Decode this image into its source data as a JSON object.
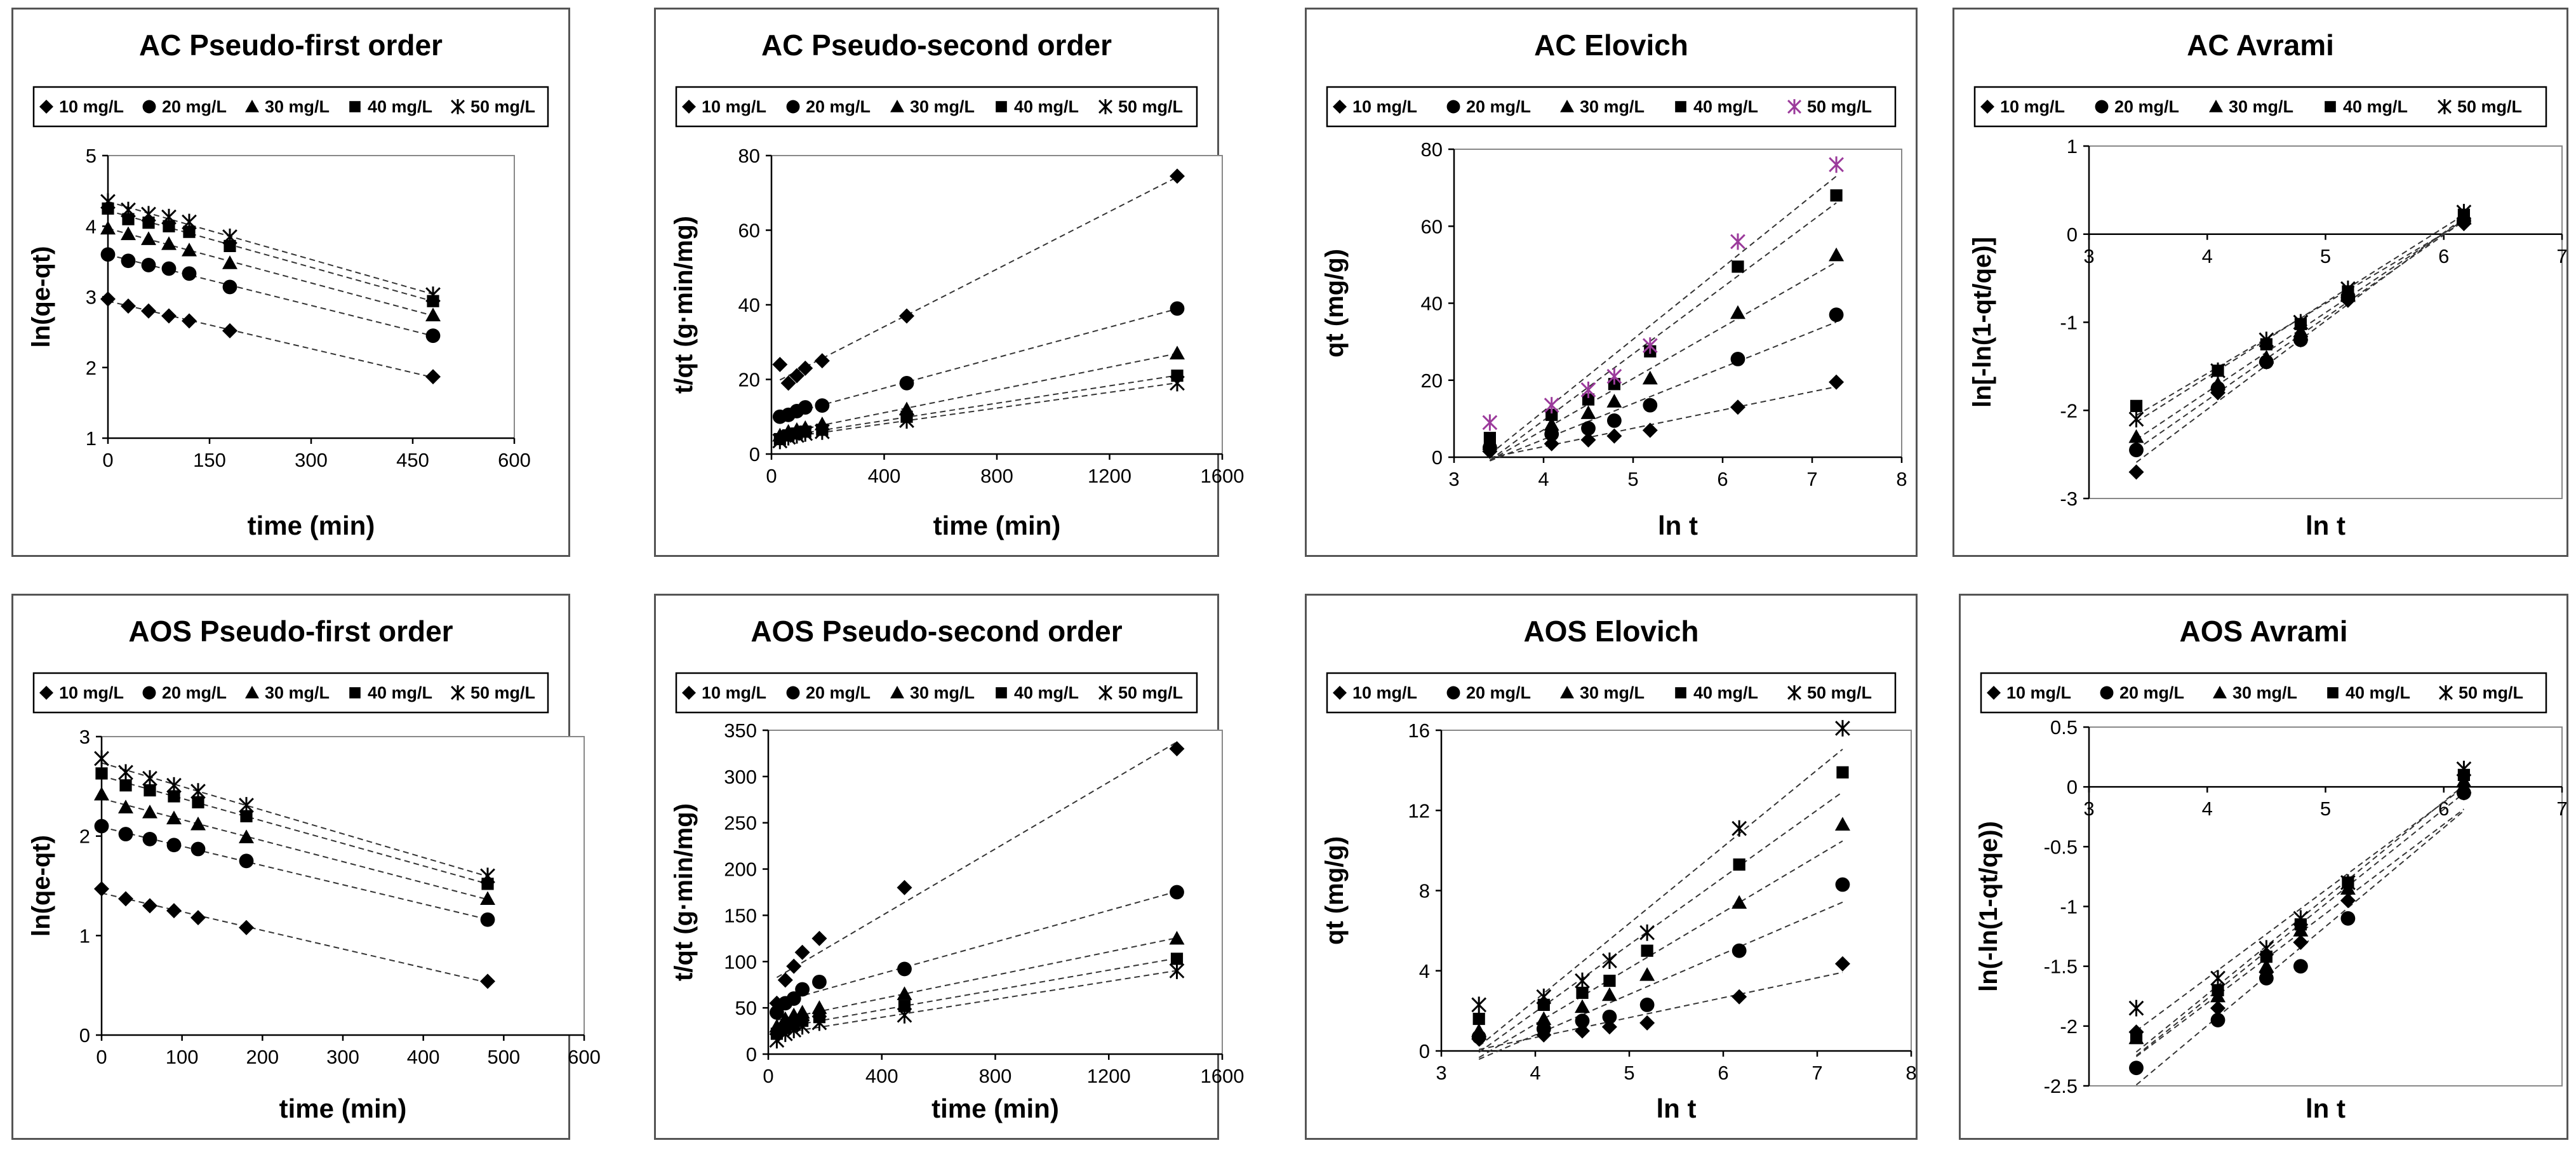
{
  "chart_data": [
    {
      "type": "scatter",
      "title": "AC  Pseudo-first order",
      "xlabel": "time (min)",
      "ylabel": "ln(qe-qt)",
      "xlim": [
        0,
        600
      ],
      "ylim": [
        1,
        5
      ],
      "xticks": [
        0,
        150,
        300,
        450,
        600
      ],
      "yticks": [
        1,
        2,
        3,
        4,
        5
      ],
      "axis_at_zero": false,
      "fit_lines": true,
      "series": [
        {
          "name": "10 mg/L",
          "marker": "diamond",
          "x": [
            0,
            30,
            60,
            90,
            120,
            180,
            480
          ],
          "y": [
            2.97,
            2.87,
            2.8,
            2.73,
            2.66,
            2.52,
            1.87
          ]
        },
        {
          "name": "20 mg/L",
          "marker": "circle",
          "x": [
            0,
            30,
            60,
            90,
            120,
            180,
            480
          ],
          "y": [
            3.6,
            3.51,
            3.45,
            3.4,
            3.33,
            3.14,
            2.45
          ]
        },
        {
          "name": "30 mg/L",
          "marker": "triangle",
          "x": [
            0,
            30,
            60,
            90,
            120,
            180,
            480
          ],
          "y": [
            3.97,
            3.89,
            3.82,
            3.75,
            3.66,
            3.48,
            2.74
          ]
        },
        {
          "name": "40 mg/L",
          "marker": "square",
          "x": [
            0,
            30,
            60,
            90,
            120,
            180,
            480
          ],
          "y": [
            4.25,
            4.1,
            4.05,
            4.0,
            3.92,
            3.72,
            2.94
          ]
        },
        {
          "name": "50 mg/L",
          "marker": "star",
          "x": [
            0,
            30,
            60,
            90,
            120,
            180,
            480
          ],
          "y": [
            4.35,
            4.23,
            4.17,
            4.13,
            4.06,
            3.85,
            3.03
          ]
        }
      ]
    },
    {
      "type": "scatter",
      "title": "AC  Pseudo-second order",
      "xlabel": "time (min)",
      "ylabel": "t/qt (g·min/mg)",
      "xlim": [
        0,
        1600
      ],
      "ylim": [
        0,
        80
      ],
      "xticks": [
        0,
        400,
        800,
        1200,
        1600
      ],
      "yticks": [
        0,
        20,
        40,
        60,
        80
      ],
      "axis_at_zero": false,
      "fit_lines": true,
      "series": [
        {
          "name": "10 mg/L",
          "marker": "diamond",
          "x": [
            30,
            60,
            90,
            120,
            180,
            480,
            1440
          ],
          "y": [
            24,
            19,
            21,
            23,
            25,
            37,
            74.5
          ]
        },
        {
          "name": "20 mg/L",
          "marker": "circle",
          "x": [
            30,
            60,
            90,
            120,
            180,
            480,
            1440
          ],
          "y": [
            10,
            10.5,
            11.5,
            12.5,
            13,
            19,
            39
          ]
        },
        {
          "name": "30 mg/L",
          "marker": "triangle",
          "x": [
            30,
            60,
            90,
            120,
            180,
            480,
            1440
          ],
          "y": [
            5,
            6,
            6.5,
            7,
            8,
            12,
            27
          ]
        },
        {
          "name": "40 mg/L",
          "marker": "square",
          "x": [
            30,
            60,
            90,
            120,
            180,
            480,
            1440
          ],
          "y": [
            4,
            5,
            5.5,
            6,
            6.5,
            10,
            21
          ]
        },
        {
          "name": "50 mg/L",
          "marker": "star",
          "x": [
            30,
            60,
            90,
            120,
            180,
            480,
            1440
          ],
          "y": [
            3.5,
            4.5,
            5,
            5.5,
            6,
            9,
            19
          ]
        }
      ]
    },
    {
      "type": "scatter",
      "title": "AC  Elovich",
      "xlabel": "ln t",
      "ylabel": "qt (mg/g)",
      "xlim": [
        3,
        8
      ],
      "ylim": [
        0,
        80
      ],
      "xticks": [
        3,
        4,
        5,
        6,
        7,
        8
      ],
      "yticks": [
        0,
        20,
        40,
        60,
        80
      ],
      "axis_at_zero": false,
      "fit_lines": true,
      "series": [
        {
          "name": "10 mg/L",
          "marker": "diamond",
          "x": [
            3.4,
            4.09,
            4.5,
            4.79,
            5.19,
            6.17,
            7.27
          ],
          "y": [
            1.5,
            3.5,
            4.5,
            5.5,
            7,
            13,
            19.5
          ]
        },
        {
          "name": "20 mg/L",
          "marker": "circle",
          "x": [
            3.4,
            4.09,
            4.5,
            4.79,
            5.19,
            6.17,
            7.27
          ],
          "y": [
            2.5,
            6,
            7.5,
            9.5,
            13.5,
            25.5,
            37
          ]
        },
        {
          "name": "30 mg/L",
          "marker": "triangle",
          "x": [
            3.4,
            4.09,
            4.5,
            4.79,
            5.19,
            6.17,
            7.27
          ],
          "y": [
            3.5,
            8.5,
            11.5,
            14.5,
            20.5,
            37.5,
            52.5
          ]
        },
        {
          "name": "40 mg/L",
          "marker": "square",
          "x": [
            3.4,
            4.09,
            4.5,
            4.79,
            5.19,
            6.17,
            7.27
          ],
          "y": [
            5,
            11,
            15,
            19,
            27.5,
            49.5,
            68
          ]
        },
        {
          "name": "50 mg/L",
          "marker": "star",
          "color": "#9b3a9b",
          "x": [
            3.4,
            4.09,
            4.5,
            4.79,
            5.19,
            6.17,
            7.27
          ],
          "y": [
            9,
            13.5,
            17.5,
            21,
            29,
            56,
            76
          ]
        }
      ]
    },
    {
      "type": "scatter",
      "title": "AC  Avrami",
      "xlabel": "ln t",
      "ylabel": "ln[-ln(1-qt/qe)]",
      "xlim": [
        3,
        7
      ],
      "ylim": [
        -3,
        1
      ],
      "xticks": [
        3,
        4,
        5,
        6,
        7
      ],
      "yticks": [
        -3,
        -2,
        -1,
        0,
        1
      ],
      "axis_at_zero": true,
      "fit_lines": true,
      "series": [
        {
          "name": "10 mg/L",
          "marker": "diamond",
          "x": [
            3.4,
            4.09,
            4.5,
            4.79,
            5.19,
            6.17
          ],
          "y": [
            -2.7,
            -1.8,
            -1.45,
            -1.2,
            -0.75,
            0.12
          ]
        },
        {
          "name": "20 mg/L",
          "marker": "circle",
          "x": [
            3.4,
            4.09,
            4.5,
            4.79,
            5.19,
            6.17
          ],
          "y": [
            -2.45,
            -1.75,
            -1.45,
            -1.2,
            -0.72,
            0.15
          ]
        },
        {
          "name": "30 mg/L",
          "marker": "triangle",
          "x": [
            3.4,
            4.09,
            4.5,
            4.79,
            5.19,
            6.17
          ],
          "y": [
            -2.3,
            -1.7,
            -1.4,
            -1.1,
            -0.7,
            0.18
          ]
        },
        {
          "name": "40 mg/L",
          "marker": "square",
          "x": [
            3.4,
            4.09,
            4.5,
            4.79,
            5.19,
            6.17
          ],
          "y": [
            -1.95,
            -1.55,
            -1.25,
            -1.02,
            -0.65,
            0.22
          ]
        },
        {
          "name": "50 mg/L",
          "marker": "star",
          "x": [
            3.4,
            4.09,
            4.5,
            4.79,
            5.19,
            6.17
          ],
          "y": [
            -2.1,
            -1.55,
            -1.2,
            -1.0,
            -0.62,
            0.25
          ]
        }
      ]
    },
    {
      "type": "scatter",
      "title": "AOS  Pseudo-first order",
      "xlabel": "time (min)",
      "ylabel": "ln(qe-qt)",
      "xlim": [
        0,
        600
      ],
      "ylim": [
        0,
        3
      ],
      "xticks": [
        0,
        100,
        200,
        300,
        400,
        500,
        600
      ],
      "yticks": [
        0,
        1,
        2,
        3
      ],
      "axis_at_zero": false,
      "fit_lines": true,
      "series": [
        {
          "name": "10 mg/L",
          "marker": "diamond",
          "x": [
            0,
            30,
            60,
            90,
            120,
            180,
            480
          ],
          "y": [
            1.47,
            1.37,
            1.3,
            1.25,
            1.18,
            1.08,
            0.54
          ]
        },
        {
          "name": "20 mg/L",
          "marker": "circle",
          "x": [
            0,
            30,
            60,
            90,
            120,
            180,
            480
          ],
          "y": [
            2.1,
            2.02,
            1.97,
            1.91,
            1.87,
            1.75,
            1.16
          ]
        },
        {
          "name": "30 mg/L",
          "marker": "triangle",
          "x": [
            0,
            30,
            60,
            90,
            120,
            180,
            480
          ],
          "y": [
            2.42,
            2.29,
            2.24,
            2.18,
            2.12,
            1.99,
            1.37
          ]
        },
        {
          "name": "40 mg/L",
          "marker": "square",
          "x": [
            0,
            30,
            60,
            90,
            120,
            180,
            480
          ],
          "y": [
            2.63,
            2.51,
            2.46,
            2.4,
            2.34,
            2.2,
            1.52
          ]
        },
        {
          "name": "50 mg/L",
          "marker": "star",
          "x": [
            0,
            30,
            60,
            90,
            120,
            180,
            480
          ],
          "y": [
            2.78,
            2.64,
            2.58,
            2.51,
            2.45,
            2.31,
            1.6
          ]
        }
      ]
    },
    {
      "type": "scatter",
      "title": "AOS  Pseudo-second order",
      "xlabel": "time (min)",
      "ylabel": "t/qt (g·min/mg)",
      "xlim": [
        0,
        1600
      ],
      "ylim": [
        0,
        350
      ],
      "xticks": [
        0,
        400,
        800,
        1200,
        1600
      ],
      "yticks": [
        0,
        50,
        100,
        150,
        200,
        250,
        300,
        350
      ],
      "axis_at_zero": false,
      "fit_lines": true,
      "series": [
        {
          "name": "10 mg/L",
          "marker": "diamond",
          "x": [
            30,
            60,
            90,
            120,
            180,
            480,
            1440
          ],
          "y": [
            55,
            80,
            95,
            110,
            125,
            180,
            330
          ]
        },
        {
          "name": "20 mg/L",
          "marker": "circle",
          "x": [
            30,
            60,
            90,
            120,
            180,
            480,
            1440
          ],
          "y": [
            45,
            55,
            60,
            70,
            78,
            92,
            175
          ]
        },
        {
          "name": "30 mg/L",
          "marker": "triangle",
          "x": [
            30,
            60,
            90,
            120,
            180,
            480,
            1440
          ],
          "y": [
            30,
            38,
            42,
            45,
            50,
            65,
            125
          ]
        },
        {
          "name": "40 mg/L",
          "marker": "square",
          "x": [
            30,
            60,
            90,
            120,
            180,
            480,
            1440
          ],
          "y": [
            22,
            28,
            32,
            36,
            40,
            52,
            103
          ]
        },
        {
          "name": "50 mg/L",
          "marker": "star",
          "x": [
            30,
            60,
            90,
            120,
            180,
            480,
            1440
          ],
          "y": [
            15,
            22,
            26,
            30,
            34,
            42,
            90
          ]
        }
      ]
    },
    {
      "type": "scatter",
      "title": "AOS  Elovich",
      "xlabel": "ln t",
      "ylabel": "qt (mg/g)",
      "xlim": [
        3,
        8
      ],
      "ylim": [
        0,
        16
      ],
      "xticks": [
        3,
        4,
        5,
        6,
        7,
        8
      ],
      "yticks": [
        0,
        4,
        8,
        12,
        16
      ],
      "axis_at_zero": false,
      "fit_lines": true,
      "series": [
        {
          "name": "10 mg/L",
          "marker": "diamond",
          "x": [
            3.4,
            4.09,
            4.5,
            4.79,
            5.19,
            6.17,
            7.27
          ],
          "y": [
            0.6,
            0.8,
            1.0,
            1.2,
            1.4,
            2.7,
            4.35
          ]
        },
        {
          "name": "20 mg/L",
          "marker": "circle",
          "x": [
            3.4,
            4.09,
            4.5,
            4.79,
            5.19,
            6.17,
            7.27
          ],
          "y": [
            0.7,
            1.1,
            1.5,
            1.7,
            2.3,
            5.0,
            8.3
          ]
        },
        {
          "name": "30 mg/L",
          "marker": "triangle",
          "x": [
            3.4,
            4.09,
            4.5,
            4.79,
            5.19,
            6.17,
            7.27
          ],
          "y": [
            1.0,
            1.6,
            2.2,
            2.8,
            3.8,
            7.4,
            11.3
          ]
        },
        {
          "name": "40 mg/L",
          "marker": "square",
          "x": [
            3.4,
            4.09,
            4.5,
            4.79,
            5.19,
            6.17,
            7.27
          ],
          "y": [
            1.6,
            2.3,
            2.9,
            3.5,
            5.0,
            9.3,
            13.9
          ]
        },
        {
          "name": "50 mg/L",
          "marker": "star",
          "x": [
            3.4,
            4.09,
            4.5,
            4.79,
            5.19,
            6.17,
            7.27
          ],
          "y": [
            2.3,
            2.7,
            3.5,
            4.5,
            5.9,
            11.1,
            16.1
          ]
        }
      ]
    },
    {
      "type": "scatter",
      "title": "AOS  Avrami",
      "xlabel": "ln t",
      "ylabel": "ln(-ln(1-qt/qe))",
      "xlim": [
        3,
        7
      ],
      "ylim": [
        -2.5,
        0.5
      ],
      "xticks": [
        3,
        4,
        5,
        6,
        7
      ],
      "yticks": [
        -2.5,
        -2,
        -1.5,
        -1,
        -0.5,
        0,
        0.5
      ],
      "axis_at_zero": true,
      "fit_lines": true,
      "series": [
        {
          "name": "10 mg/L",
          "marker": "diamond",
          "x": [
            3.4,
            4.09,
            4.5,
            4.79,
            5.19,
            6.17
          ],
          "y": [
            -2.05,
            -1.85,
            -1.55,
            -1.3,
            -0.95,
            -0.05
          ]
        },
        {
          "name": "20 mg/L",
          "marker": "circle",
          "x": [
            3.4,
            4.09,
            4.5,
            4.79,
            5.19,
            6.17
          ],
          "y": [
            -2.35,
            -1.95,
            -1.6,
            -1.5,
            -1.1,
            -0.05
          ]
        },
        {
          "name": "30 mg/L",
          "marker": "triangle",
          "x": [
            3.4,
            4.09,
            4.5,
            4.79,
            5.19,
            6.17
          ],
          "y": [
            -2.1,
            -1.75,
            -1.5,
            -1.2,
            -0.85,
            0.05
          ]
        },
        {
          "name": "40 mg/L",
          "marker": "square",
          "x": [
            3.4,
            4.09,
            4.5,
            4.79,
            5.19,
            6.17
          ],
          "y": [
            -2.1,
            -1.7,
            -1.42,
            -1.15,
            -0.8,
            0.1
          ]
        },
        {
          "name": "50 mg/L",
          "marker": "star",
          "x": [
            3.4,
            4.09,
            4.5,
            4.79,
            5.19,
            6.17
          ],
          "y": [
            -1.85,
            -1.6,
            -1.35,
            -1.1,
            -0.8,
            0.15
          ]
        }
      ]
    }
  ]
}
